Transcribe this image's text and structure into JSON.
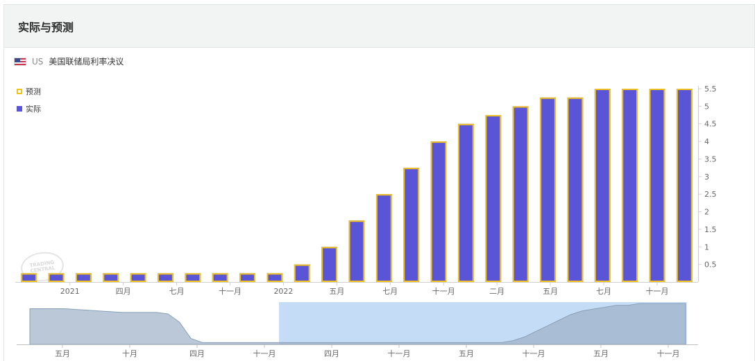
{
  "header": {
    "title": "实际与预测"
  },
  "subtitle": {
    "country": "US",
    "indicator": "美国联储局利率决议",
    "flag_icon": "us-flag-icon"
  },
  "legend": {
    "forecast_label": "预测",
    "actual_label": "实际"
  },
  "watermark": {
    "line1": "TRADING",
    "line2": "CENTRAL"
  },
  "colors": {
    "forecast": "#f1c21b",
    "actual": "#5a55d6",
    "navigator_window": "#c5dcf7",
    "navigator_area": "#b9cadb"
  },
  "chart_data": [
    {
      "type": "bar",
      "title": "",
      "series": [
        {
          "name": "预测",
          "values": [
            0.25,
            0.25,
            0.25,
            0.25,
            0.25,
            0.25,
            0.25,
            0.25,
            0.25,
            0.25,
            0.5,
            1.0,
            1.75,
            2.5,
            3.25,
            4.0,
            4.5,
            4.75,
            5.0,
            5.25,
            5.25,
            5.5,
            5.5,
            5.5,
            5.5
          ]
        },
        {
          "name": "实际",
          "values": [
            0.25,
            0.25,
            0.25,
            0.25,
            0.25,
            0.25,
            0.25,
            0.25,
            0.25,
            0.25,
            0.5,
            1.0,
            1.75,
            2.5,
            3.25,
            4.0,
            4.5,
            4.75,
            5.0,
            5.25,
            5.25,
            5.5,
            5.5,
            5.5,
            5.5
          ]
        }
      ],
      "x_tick_labels": [
        "2021",
        "四月",
        "七月",
        "十一月",
        "2022",
        "五月",
        "七月",
        "十一月",
        "二月",
        "五月",
        "七月",
        "十一月"
      ],
      "y_ticks": [
        "0.5",
        "1",
        "1.5",
        "2",
        "2.5",
        "3",
        "3.5",
        "4",
        "4.5",
        "5",
        "5.5"
      ],
      "ylim": [
        0,
        5.5
      ],
      "grid": false,
      "legend_placement": "top-left"
    },
    {
      "type": "area",
      "role": "navigator",
      "values": [
        4.8,
        4.8,
        4.8,
        4.8,
        4.7,
        4.6,
        4.5,
        4.4,
        4.3,
        4.3,
        4.3,
        4.3,
        4.1,
        3.0,
        0.8,
        0.25,
        0.25,
        0.25,
        0.25,
        0.25,
        0.25,
        0.25,
        0.25,
        0.25,
        0.25,
        0.25,
        0.25,
        0.25,
        0.25,
        0.25,
        0.25,
        0.25,
        0.25,
        0.25,
        0.25,
        0.25,
        0.25,
        0.25,
        0.25,
        0.25,
        0.25,
        0.25,
        0.5,
        1.0,
        1.75,
        2.5,
        3.25,
        4.0,
        4.5,
        4.75,
        5.0,
        5.25,
        5.25,
        5.5,
        5.5,
        5.5,
        5.5,
        5.5
      ],
      "window_start_fraction": 0.385,
      "window_end_fraction": 0.965,
      "x_tick_labels": [
        "五月",
        "十月",
        "四月",
        "十一月",
        "四月",
        "十一月",
        "五月",
        "十一月",
        "五月",
        "十一月"
      ]
    }
  ]
}
